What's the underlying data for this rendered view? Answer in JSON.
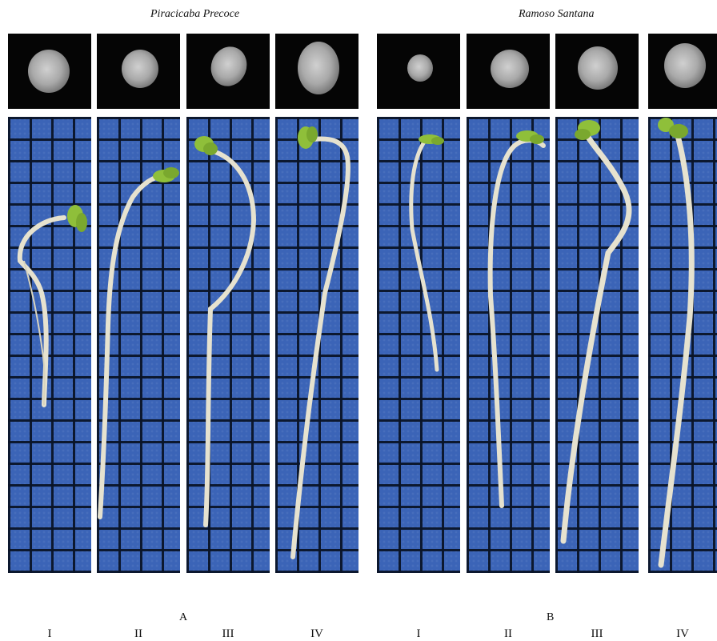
{
  "figure": {
    "group_a": {
      "title": "Piracicaba Precoce",
      "letter": "A"
    },
    "group_b": {
      "title": "Ramoso Santana",
      "letter": "B"
    },
    "panels": [
      {
        "label": "I",
        "group": "A"
      },
      {
        "label": "II",
        "group": "A"
      },
      {
        "label": "III",
        "group": "A"
      },
      {
        "label": "IV",
        "group": "A"
      },
      {
        "label": "I",
        "group": "B"
      },
      {
        "label": "II",
        "group": "B"
      },
      {
        "label": "III",
        "group": "B"
      },
      {
        "label": "IV",
        "group": "B"
      }
    ]
  },
  "colors": {
    "xray_background": "#050505",
    "grid_paper": "#3b64b7",
    "grid_lines": "#0a1428",
    "seedling_stem": "#e6e2cf",
    "cotyledon": "#8fbf3a"
  }
}
